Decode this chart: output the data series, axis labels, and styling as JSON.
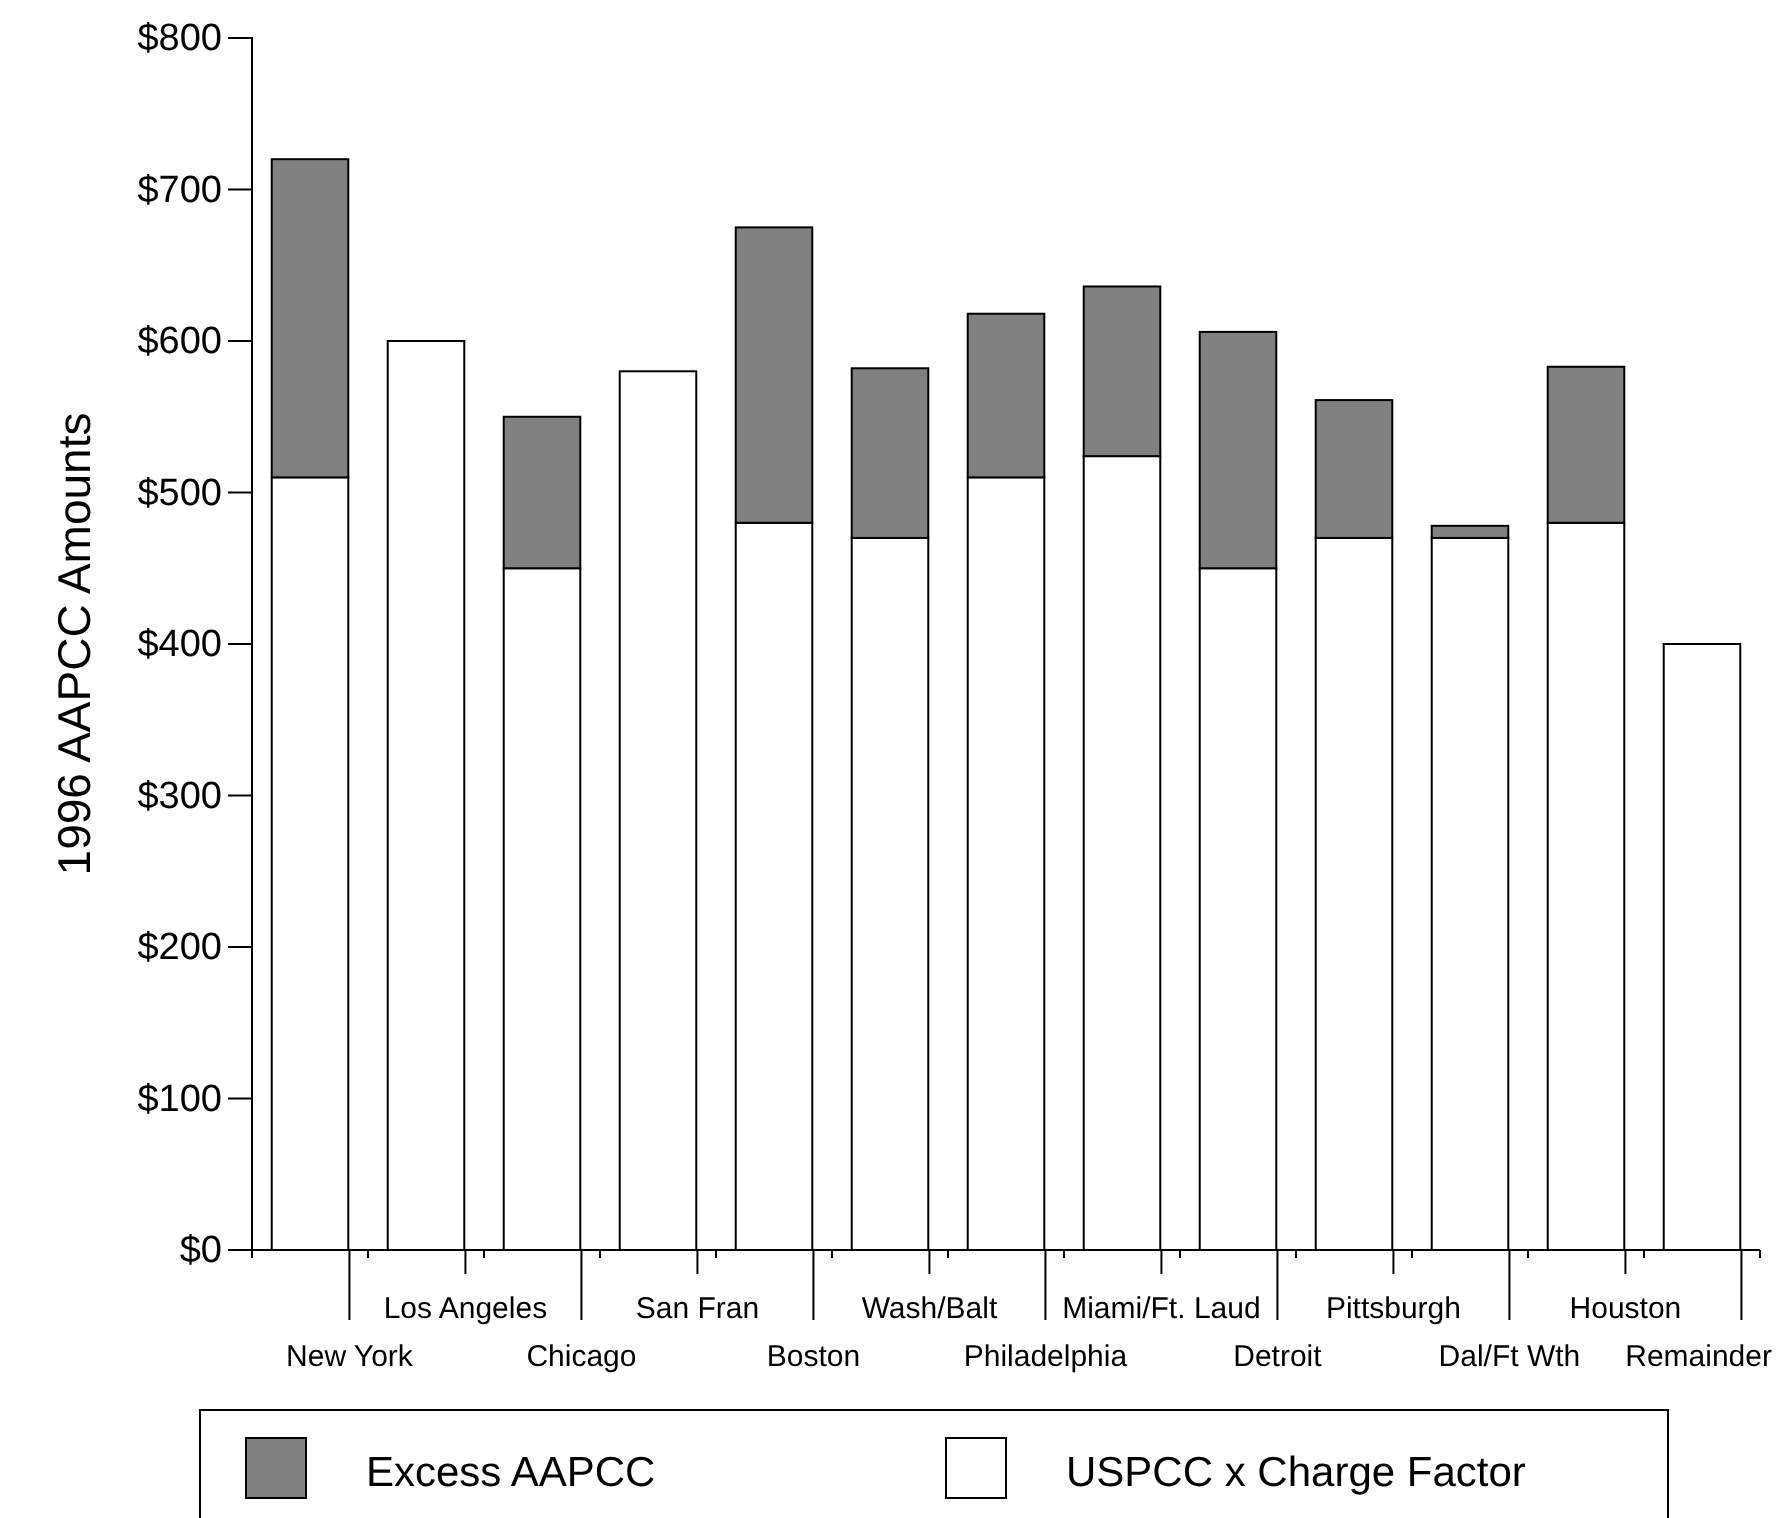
{
  "chart_data": {
    "type": "bar",
    "stacked": true,
    "ylabel": "1996 AAPCC Amounts",
    "categories": [
      "New York",
      "Los Angeles",
      "Chicago",
      "San Fran",
      "Boston",
      "Wash/Balt",
      "Philadelphia",
      "Miami/Ft. Laud",
      "Detroit",
      "Pittsburgh",
      "Dal/Ft Wth",
      "Houston",
      "Remainder"
    ],
    "series": [
      {
        "name": "USPCC x Charge Factor",
        "color": "#ffffff",
        "values": [
          510,
          600,
          450,
          580,
          480,
          470,
          510,
          524,
          450,
          470,
          470,
          480,
          400
        ]
      },
      {
        "name": "Excess AAPCC",
        "color": "#808080",
        "values": [
          210,
          0,
          100,
          0,
          195,
          112,
          108,
          112,
          156,
          91,
          8,
          103,
          0
        ]
      }
    ],
    "ylim": [
      0,
      800
    ],
    "yticks": [
      {
        "value": 0,
        "label": "$0"
      },
      {
        "value": 100,
        "label": "$100"
      },
      {
        "value": 200,
        "label": "$200"
      },
      {
        "value": 300,
        "label": "$300"
      },
      {
        "value": 400,
        "label": "$400"
      },
      {
        "value": 500,
        "label": "$500"
      },
      {
        "value": 600,
        "label": "$600"
      },
      {
        "value": 700,
        "label": "$700"
      },
      {
        "value": 800,
        "label": "$800"
      }
    ],
    "grid": false,
    "legend": "bottom"
  }
}
